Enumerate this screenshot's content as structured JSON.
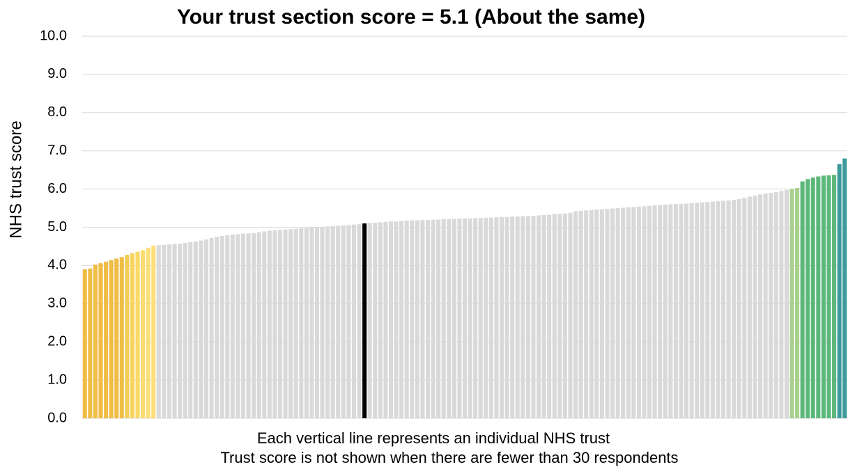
{
  "chart_data": {
    "type": "bar",
    "title": "Your trust section score = 5.1 (About the same)",
    "y_label": "NHS trust score",
    "annotations": [
      "Each vertical line represents an individual NHS trust",
      "Trust score is not shown when there are fewer than 30 respondents"
    ],
    "values": [
      3.9,
      3.92,
      4.02,
      4.06,
      4.1,
      4.14,
      4.18,
      4.22,
      4.28,
      4.32,
      4.36,
      4.4,
      4.46,
      4.52,
      4.53,
      4.54,
      4.55,
      4.56,
      4.57,
      4.59,
      4.61,
      4.63,
      4.65,
      4.68,
      4.72,
      4.75,
      4.77,
      4.79,
      4.81,
      4.82,
      4.83,
      4.84,
      4.85,
      4.87,
      4.89,
      4.91,
      4.92,
      4.93,
      4.94,
      4.95,
      4.96,
      4.97,
      4.98,
      4.99,
      5.0,
      5.01,
      5.02,
      5.03,
      5.04,
      5.05,
      5.06,
      5.07,
      5.08,
      5.1,
      5.11,
      5.12,
      5.13,
      5.14,
      5.15,
      5.15,
      5.16,
      5.17,
      5.18,
      5.18,
      5.19,
      5.19,
      5.2,
      5.2,
      5.21,
      5.21,
      5.22,
      5.22,
      5.23,
      5.23,
      5.24,
      5.24,
      5.25,
      5.25,
      5.26,
      5.27,
      5.27,
      5.28,
      5.28,
      5.29,
      5.29,
      5.3,
      5.31,
      5.32,
      5.33,
      5.34,
      5.35,
      5.36,
      5.38,
      5.42,
      5.43,
      5.44,
      5.45,
      5.46,
      5.47,
      5.48,
      5.49,
      5.5,
      5.51,
      5.52,
      5.53,
      5.54,
      5.55,
      5.56,
      5.57,
      5.58,
      5.59,
      5.6,
      5.61,
      5.61,
      5.62,
      5.63,
      5.64,
      5.65,
      5.66,
      5.67,
      5.68,
      5.69,
      5.7,
      5.72,
      5.74,
      5.77,
      5.8,
      5.83,
      5.86,
      5.88,
      5.9,
      5.92,
      5.95,
      5.98,
      6.0,
      6.03,
      6.2,
      6.26,
      6.3,
      6.33,
      6.35,
      6.36,
      6.37,
      6.65,
      6.8
    ],
    "colors": [
      "#f0bd45",
      "#f0bd45",
      "#f0bd45",
      "#f0bd45",
      "#f0bd45",
      "#f0bd45",
      "#f0bd45",
      "#f0bd45",
      "#f6cb55",
      "#f9d35f",
      "#fbd866",
      "#fcdc6e",
      "#fddf75",
      "#fde07a",
      "#d9d9d9",
      "#d9d9d9",
      "#d9d9d9",
      "#d9d9d9",
      "#d9d9d9",
      "#d9d9d9",
      "#d9d9d9",
      "#d9d9d9",
      "#d9d9d9",
      "#d9d9d9",
      "#d9d9d9",
      "#d9d9d9",
      "#d9d9d9",
      "#d9d9d9",
      "#d9d9d9",
      "#d9d9d9",
      "#d9d9d9",
      "#d9d9d9",
      "#d9d9d9",
      "#d9d9d9",
      "#d9d9d9",
      "#d9d9d9",
      "#d9d9d9",
      "#d9d9d9",
      "#d9d9d9",
      "#d9d9d9",
      "#d9d9d9",
      "#d9d9d9",
      "#d9d9d9",
      "#d9d9d9",
      "#d9d9d9",
      "#d9d9d9",
      "#d9d9d9",
      "#d9d9d9",
      "#d9d9d9",
      "#d9d9d9",
      "#d9d9d9",
      "#d9d9d9",
      "#d9d9d9",
      "#000000",
      "#d9d9d9",
      "#d9d9d9",
      "#d9d9d9",
      "#d9d9d9",
      "#d9d9d9",
      "#d9d9d9",
      "#d9d9d9",
      "#d9d9d9",
      "#d9d9d9",
      "#d9d9d9",
      "#d9d9d9",
      "#d9d9d9",
      "#d9d9d9",
      "#d9d9d9",
      "#d9d9d9",
      "#d9d9d9",
      "#d9d9d9",
      "#d9d9d9",
      "#d9d9d9",
      "#d9d9d9",
      "#d9d9d9",
      "#d9d9d9",
      "#d9d9d9",
      "#d9d9d9",
      "#d9d9d9",
      "#d9d9d9",
      "#d9d9d9",
      "#d9d9d9",
      "#d9d9d9",
      "#d9d9d9",
      "#d9d9d9",
      "#d9d9d9",
      "#d9d9d9",
      "#d9d9d9",
      "#d9d9d9",
      "#d9d9d9",
      "#d9d9d9",
      "#d9d9d9",
      "#d9d9d9",
      "#d9d9d9",
      "#d9d9d9",
      "#d9d9d9",
      "#d9d9d9",
      "#d9d9d9",
      "#d9d9d9",
      "#d9d9d9",
      "#d9d9d9",
      "#d9d9d9",
      "#d9d9d9",
      "#d9d9d9",
      "#d9d9d9",
      "#d9d9d9",
      "#d9d9d9",
      "#d9d9d9",
      "#d9d9d9",
      "#d9d9d9",
      "#d9d9d9",
      "#d9d9d9",
      "#d9d9d9",
      "#d9d9d9",
      "#d9d9d9",
      "#d9d9d9",
      "#d9d9d9",
      "#d9d9d9",
      "#d9d9d9",
      "#d9d9d9",
      "#d9d9d9",
      "#d9d9d9",
      "#d9d9d9",
      "#d9d9d9",
      "#d9d9d9",
      "#d9d9d9",
      "#d9d9d9",
      "#d9d9d9",
      "#d9d9d9",
      "#d9d9d9",
      "#d9d9d9",
      "#d9d9d9",
      "#d9d9d9",
      "#d9d9d9",
      "#a8d08d",
      "#a8d08d",
      "#5cb87a",
      "#5cb87a",
      "#5cb87a",
      "#5cb87a",
      "#5cb87a",
      "#5cb87a",
      "#5cb87a",
      "#3d9a9b",
      "#3d9a9b"
    ],
    "ylim": [
      0,
      10
    ],
    "yticks": [
      {
        "value": 0,
        "label": "0.0"
      },
      {
        "value": 1,
        "label": "1.0"
      },
      {
        "value": 2,
        "label": "2.0"
      },
      {
        "value": 3,
        "label": "3.0"
      },
      {
        "value": 4,
        "label": "4.0"
      },
      {
        "value": 5,
        "label": "5.0"
      },
      {
        "value": 6,
        "label": "6.0"
      },
      {
        "value": 7,
        "label": "7.0"
      },
      {
        "value": 8,
        "label": "8.0"
      },
      {
        "value": 9,
        "label": "9.0"
      },
      {
        "value": 10,
        "label": "10.0"
      }
    ],
    "grid": true
  }
}
